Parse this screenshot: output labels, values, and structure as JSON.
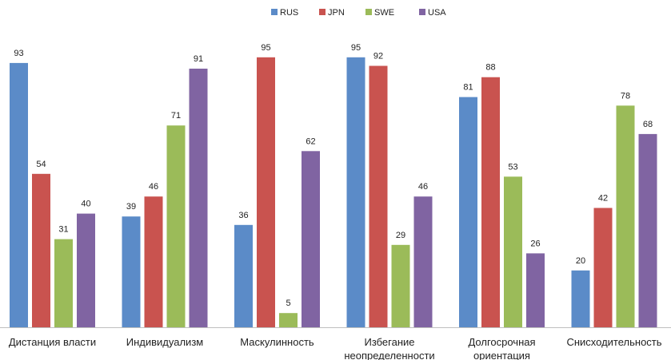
{
  "chart_data": {
    "type": "bar",
    "title": "",
    "xlabel": "",
    "ylabel": "",
    "ylim": [
      0,
      100
    ],
    "grid": false,
    "legend_position": "top",
    "categories": [
      [
        "Дистанция власти"
      ],
      [
        "Индивидуализм"
      ],
      [
        "Маскулинность"
      ],
      [
        "Избегание",
        "неопределенности"
      ],
      [
        "Долгосрочная",
        "ориентация"
      ],
      [
        "Снисходительность"
      ]
    ],
    "series": [
      {
        "name": "RUS",
        "color": "#5B8BC8",
        "values": [
          93,
          39,
          36,
          95,
          81,
          20
        ]
      },
      {
        "name": "JPN",
        "color": "#C9534F",
        "values": [
          54,
          46,
          95,
          92,
          88,
          42
        ]
      },
      {
        "name": "SWE",
        "color": "#9BBB59",
        "values": [
          31,
          71,
          5,
          29,
          53,
          78
        ]
      },
      {
        "name": "USA",
        "color": "#8064A2",
        "values": [
          40,
          91,
          62,
          46,
          26,
          68
        ]
      }
    ]
  }
}
